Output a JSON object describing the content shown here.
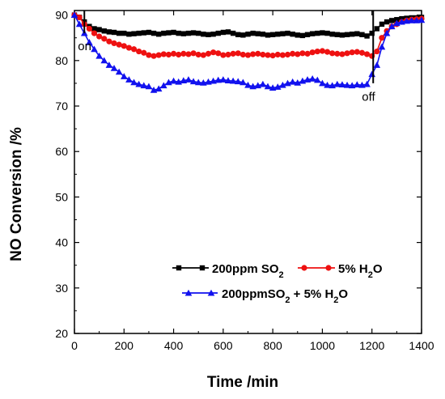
{
  "chart_data": {
    "type": "line",
    "title": "",
    "xlabel": "Time /min",
    "ylabel": "NO Conversion /%",
    "xlim": [
      0,
      1400
    ],
    "ylim": [
      20,
      91
    ],
    "xticks": [
      0,
      200,
      400,
      600,
      800,
      1000,
      1200,
      1400
    ],
    "yticks": [
      20,
      30,
      40,
      50,
      60,
      70,
      80,
      90
    ],
    "grid": false,
    "legend_position": "bottom-right",
    "series": [
      {
        "name": "200ppm SO2",
        "legend_base": "200ppm SO",
        "legend_sub": "2",
        "legend_tail": "",
        "color": "#000000",
        "marker": "square",
        "x": [
          0,
          20,
          40,
          60,
          80,
          100,
          120,
          140,
          160,
          180,
          200,
          220,
          240,
          260,
          280,
          300,
          320,
          340,
          360,
          380,
          400,
          420,
          440,
          460,
          480,
          500,
          520,
          540,
          560,
          580,
          600,
          620,
          640,
          660,
          680,
          700,
          720,
          740,
          760,
          780,
          800,
          820,
          840,
          860,
          880,
          900,
          920,
          940,
          960,
          980,
          1000,
          1020,
          1040,
          1060,
          1080,
          1100,
          1120,
          1140,
          1160,
          1180,
          1200,
          1220,
          1240,
          1260,
          1280,
          1300,
          1320,
          1340,
          1360,
          1380,
          1400
        ],
        "y": [
          90,
          89.5,
          88.5,
          87.5,
          87,
          86.8,
          86.5,
          86.3,
          86.2,
          86,
          86,
          85.8,
          85.9,
          86,
          86.1,
          86.2,
          86,
          85.8,
          86,
          86.1,
          86.2,
          86,
          85.9,
          86,
          86.1,
          86,
          85.8,
          85.7,
          85.8,
          86,
          86.2,
          86.3,
          86,
          85.7,
          85.6,
          85.8,
          86,
          85.9,
          85.8,
          85.6,
          85.7,
          85.8,
          85.9,
          86,
          85.8,
          85.6,
          85.5,
          85.7,
          85.9,
          86,
          86.1,
          86,
          85.8,
          85.7,
          85.6,
          85.7,
          85.8,
          85.9,
          85.7,
          85.4,
          86,
          87,
          88,
          88.5,
          88.8,
          89,
          89.2,
          89.3,
          89.4,
          89.4,
          89.5
        ]
      },
      {
        "name": "5% H2O",
        "legend_base": "5% H",
        "legend_sub": "2",
        "legend_tail": "O",
        "color": "#ee1111",
        "marker": "circle",
        "x": [
          0,
          20,
          40,
          60,
          80,
          100,
          120,
          140,
          160,
          180,
          200,
          220,
          240,
          260,
          280,
          300,
          320,
          340,
          360,
          380,
          400,
          420,
          440,
          460,
          480,
          500,
          520,
          540,
          560,
          580,
          600,
          620,
          640,
          660,
          680,
          700,
          720,
          740,
          760,
          780,
          800,
          820,
          840,
          860,
          880,
          900,
          920,
          940,
          960,
          980,
          1000,
          1020,
          1040,
          1060,
          1080,
          1100,
          1120,
          1140,
          1160,
          1180,
          1200,
          1220,
          1240,
          1260,
          1280,
          1300,
          1320,
          1340,
          1360,
          1380,
          1400
        ],
        "y": [
          90,
          89.5,
          88,
          87,
          86,
          85.3,
          84.8,
          84.2,
          83.8,
          83.5,
          83.2,
          82.8,
          82.5,
          82,
          81.7,
          81.2,
          81,
          81.2,
          81.4,
          81.3,
          81.5,
          81.3,
          81.5,
          81.4,
          81.6,
          81.3,
          81.2,
          81.5,
          81.8,
          81.6,
          81.2,
          81.3,
          81.5,
          81.6,
          81.3,
          81.2,
          81.4,
          81.5,
          81.3,
          81.2,
          81.1,
          81.3,
          81.2,
          81.3,
          81.5,
          81.4,
          81.6,
          81.5,
          81.8,
          82,
          82.1,
          81.9,
          81.6,
          81.5,
          81.4,
          81.6,
          81.8,
          81.9,
          81.7,
          81.4,
          81,
          82,
          85,
          86.5,
          87.5,
          88,
          88.5,
          88.8,
          89,
          89.1,
          89.2
        ]
      },
      {
        "name": "200ppmSO2 + 5% H2O",
        "legend_base": "200ppmSO",
        "legend_sub": "2",
        "legend_tail": " + 5% H",
        "legend_sub2": "2",
        "legend_tail2": "O",
        "color": "#1111ee",
        "marker": "triangle",
        "x": [
          0,
          20,
          40,
          60,
          80,
          100,
          120,
          140,
          160,
          180,
          200,
          220,
          240,
          260,
          280,
          300,
          320,
          340,
          360,
          380,
          400,
          420,
          440,
          460,
          480,
          500,
          520,
          540,
          560,
          580,
          600,
          620,
          640,
          660,
          680,
          700,
          720,
          740,
          760,
          780,
          800,
          820,
          840,
          860,
          880,
          900,
          920,
          940,
          960,
          980,
          1000,
          1020,
          1040,
          1060,
          1080,
          1100,
          1120,
          1140,
          1160,
          1180,
          1200,
          1220,
          1240,
          1260,
          1280,
          1300,
          1320,
          1340,
          1360,
          1380,
          1400
        ],
        "y": [
          90,
          88,
          86,
          84,
          82.5,
          81,
          80,
          79,
          78.3,
          77.5,
          76.5,
          75.8,
          75.2,
          74.8,
          74.5,
          74.3,
          73.5,
          73.8,
          74.5,
          75.2,
          75.5,
          75.3,
          75.6,
          75.8,
          75.4,
          75.2,
          75.1,
          75.3,
          75.5,
          75.7,
          75.8,
          75.6,
          75.5,
          75.4,
          75.2,
          74.6,
          74.3,
          74.5,
          74.8,
          74.3,
          74,
          74.2,
          74.6,
          75,
          75.3,
          75.1,
          75.5,
          75.8,
          76,
          75.7,
          75,
          74.6,
          74.5,
          74.8,
          74.7,
          74.6,
          74.5,
          74.7,
          74.6,
          74.8,
          77,
          79,
          83,
          86,
          87.5,
          88.2,
          88.5,
          88.7,
          88.8,
          88.8,
          88.9
        ]
      }
    ],
    "annotations": [
      {
        "text": "on",
        "x": 40
      },
      {
        "text": "off",
        "x": 1205
      }
    ]
  }
}
